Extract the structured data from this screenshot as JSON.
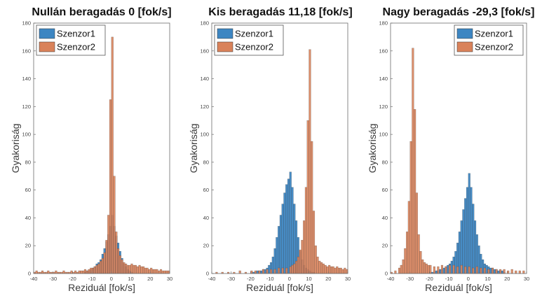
{
  "figure": {
    "ylabel": "Gyakoriság",
    "xlabel": "Reziduál [fok/s]"
  },
  "chart_data": [
    {
      "type": "bar",
      "title": "Nullán beragadás 0 [fok/s]",
      "xlabel": "Reziduál [fok/s]",
      "ylabel": "Gyakoriság",
      "xlim": [
        -40,
        30
      ],
      "ylim": [
        0,
        180
      ],
      "xticks": [
        "-40",
        "-30",
        "-20",
        "-10",
        "0",
        "10",
        "20",
        "30"
      ],
      "yticks": [
        "0",
        "20",
        "40",
        "60",
        "80",
        "100",
        "120",
        "140",
        "160",
        "180"
      ],
      "legend": "top-left",
      "bin_width": 1,
      "series": [
        {
          "name": "Szenzor1",
          "color": "#3d86c2",
          "x": [
            -14,
            -13,
            -12,
            -11,
            -10,
            -9,
            -8,
            -7,
            -6,
            -5,
            -4,
            -3,
            -2,
            -1,
            0,
            1,
            2,
            3,
            4,
            5,
            6,
            7,
            8,
            9,
            10
          ],
          "values": [
            1,
            2,
            2,
            3,
            4,
            5,
            7,
            8,
            10,
            14,
            18,
            23,
            28,
            34,
            42,
            34,
            27,
            22,
            16,
            11,
            7,
            5,
            3,
            2,
            1
          ]
        },
        {
          "name": "Szenzor2",
          "color": "#d9825a",
          "x": [
            -40,
            -39,
            -38,
            -37,
            -36,
            -35,
            -34,
            -33,
            -32,
            -31,
            -30,
            -29,
            -28,
            -27,
            -26,
            -25,
            -24,
            -23,
            -22,
            -21,
            -20,
            -19,
            -18,
            -17,
            -16,
            -15,
            -14,
            -13,
            -12,
            -11,
            -10,
            -9,
            -8,
            -7,
            -6,
            -5,
            -4,
            -3,
            -2,
            -1,
            0,
            1,
            2,
            3,
            4,
            5,
            6,
            7,
            8,
            9,
            10,
            11,
            12,
            13,
            14,
            15,
            16,
            17,
            18,
            19,
            20,
            21,
            22,
            23,
            24,
            25,
            26,
            27,
            28,
            29
          ],
          "values": [
            1,
            2,
            1,
            1,
            2,
            1,
            1,
            2,
            1,
            1,
            1,
            2,
            1,
            1,
            1,
            2,
            1,
            1,
            1,
            2,
            1,
            2,
            1,
            2,
            2,
            2,
            3,
            2,
            3,
            4,
            4,
            5,
            6,
            7,
            9,
            11,
            15,
            24,
            42,
            125,
            170,
            70,
            30,
            18,
            13,
            10,
            8,
            7,
            6,
            6,
            7,
            6,
            6,
            5,
            6,
            5,
            5,
            4,
            4,
            3,
            4,
            3,
            3,
            3,
            2,
            3,
            2,
            2,
            2,
            2
          ]
        }
      ]
    },
    {
      "type": "bar",
      "title": "Kis beragadás 11,18 [fok/s]",
      "xlabel": "Reziduál [fok/s]",
      "ylabel": "Gyakoriság",
      "xlim": [
        -40,
        30
      ],
      "ylim": [
        0,
        180
      ],
      "xticks": [
        "-40",
        "-30",
        "-20",
        "-10",
        "0",
        "10",
        "20",
        "30"
      ],
      "yticks": [
        "0",
        "20",
        "40",
        "60",
        "80",
        "100",
        "120",
        "140",
        "160",
        "180"
      ],
      "legend": "top-right",
      "bin_width": 1,
      "series": [
        {
          "name": "Szenzor1",
          "color": "#3d86c2",
          "x": [
            -20,
            -19,
            -18,
            -17,
            -16,
            -15,
            -14,
            -13,
            -12,
            -11,
            -10,
            -9,
            -8,
            -7,
            -6,
            -5,
            -4,
            -3,
            -2,
            -1,
            0,
            1,
            2,
            3,
            4,
            5,
            6,
            7,
            8,
            9,
            10,
            11,
            12
          ],
          "values": [
            1,
            1,
            1,
            2,
            2,
            2,
            3,
            3,
            4,
            6,
            8,
            12,
            18,
            26,
            34,
            42,
            50,
            58,
            64,
            68,
            73,
            62,
            50,
            38,
            26,
            16,
            10,
            6,
            4,
            3,
            2,
            1,
            1
          ]
        },
        {
          "name": "Szenzor2",
          "color": "#d9825a",
          "x": [
            -38,
            -35,
            -32,
            -29,
            -26,
            -23,
            -20,
            -18,
            -16,
            -14,
            -12,
            -10,
            -8,
            -6,
            -4,
            -2,
            0,
            1,
            2,
            3,
            4,
            5,
            6,
            7,
            8,
            9,
            10,
            11,
            12,
            13,
            14,
            15,
            16,
            17,
            18,
            19,
            20,
            21,
            22,
            23,
            24,
            25,
            26,
            27,
            28,
            29
          ],
          "values": [
            1,
            1,
            1,
            1,
            2,
            1,
            2,
            2,
            2,
            3,
            3,
            3,
            3,
            4,
            4,
            4,
            5,
            6,
            7,
            9,
            12,
            17,
            24,
            38,
            62,
            110,
            161,
            95,
            45,
            20,
            12,
            9,
            8,
            7,
            6,
            5,
            6,
            5,
            5,
            4,
            5,
            4,
            4,
            3,
            4,
            3
          ]
        }
      ]
    },
    {
      "type": "bar",
      "title": "Nagy beragadás -29,3 [fok/s]",
      "xlabel": "Reziduál [fok/s]",
      "ylabel": "Gyakoriság",
      "xlim": [
        -40,
        30
      ],
      "ylim": [
        0,
        180
      ],
      "xticks": [
        "-40",
        "-30",
        "-20",
        "-10",
        "0",
        "10",
        "20",
        "30"
      ],
      "yticks": [
        "0",
        "20",
        "40",
        "60",
        "80",
        "100",
        "120",
        "140",
        "160",
        "180"
      ],
      "legend": "top-right",
      "bin_width": 1,
      "series": [
        {
          "name": "Szenzor1",
          "color": "#3d86c2",
          "x": [
            -20,
            -19,
            -18,
            -17,
            -16,
            -15,
            -14,
            -13,
            -12,
            -11,
            -10,
            -9,
            -8,
            -7,
            -6,
            -5,
            -4,
            -3,
            -2,
            -1,
            0,
            1,
            2,
            3,
            4,
            5,
            6,
            7,
            8,
            9,
            10,
            11,
            12,
            13,
            14,
            15,
            16,
            17,
            18
          ],
          "values": [
            1,
            1,
            1,
            2,
            2,
            3,
            3,
            4,
            5,
            6,
            7,
            9,
            12,
            16,
            22,
            30,
            38,
            46,
            54,
            62,
            72,
            62,
            50,
            38,
            28,
            20,
            14,
            10,
            7,
            6,
            5,
            4,
            4,
            3,
            3,
            2,
            2,
            2,
            1
          ]
        },
        {
          "name": "Szenzor2",
          "color": "#d9825a",
          "x": [
            -40,
            -38,
            -36,
            -35,
            -34,
            -33,
            -32,
            -31,
            -30,
            -29,
            -28,
            -27,
            -26,
            -25,
            -24,
            -23,
            -22,
            -21,
            -20,
            -18,
            -16,
            -14,
            -12,
            -10,
            -8,
            -6,
            -4,
            -2,
            0,
            2,
            4,
            6,
            8,
            10,
            12,
            14,
            16,
            18,
            20,
            22,
            24,
            26,
            28
          ],
          "values": [
            1,
            2,
            4,
            6,
            10,
            18,
            30,
            52,
            95,
            162,
            118,
            58,
            28,
            16,
            10,
            8,
            7,
            6,
            6,
            5,
            5,
            6,
            5,
            6,
            6,
            5,
            6,
            5,
            5,
            4,
            5,
            4,
            4,
            3,
            4,
            3,
            3,
            3,
            2,
            3,
            2,
            2,
            2
          ]
        }
      ]
    }
  ]
}
